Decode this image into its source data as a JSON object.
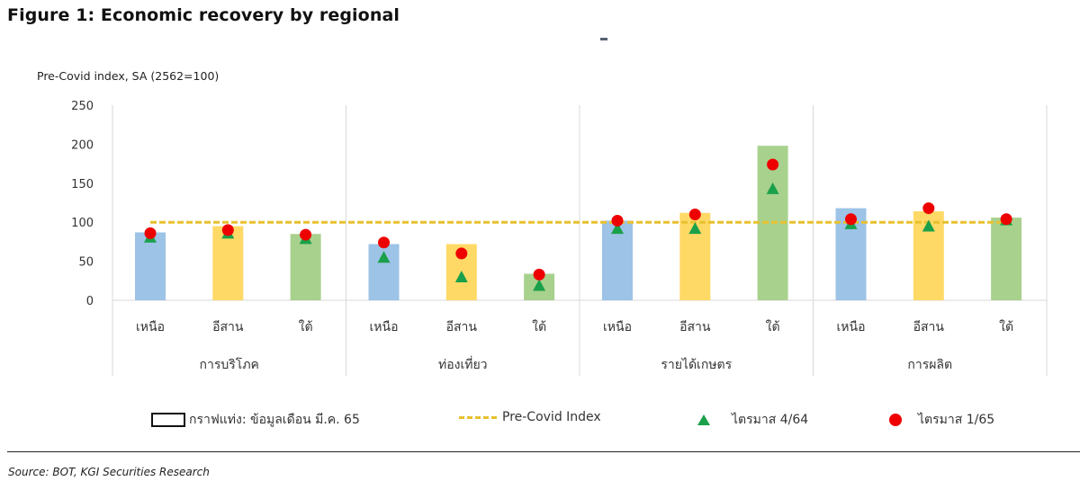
{
  "header": {
    "title": "Figure 1: Economic recovery by regional",
    "y_axis_title": "Pre-Covid index, SA  (2562=100)"
  },
  "legend": {
    "bar_label": "กราฟแท่ง: ข้อมูลเดือน มี.ค. 65",
    "line_label": "Pre-Covid Index",
    "triangle_label": "ไตรมาส 4/64",
    "dot_label": "ไตรมาส 1/65"
  },
  "footer": {
    "source": "Source: BOT, KGI Securities Research"
  },
  "colors": {
    "north": "#9dc3e6",
    "northeast": "#ffd966",
    "south": "#a9d18e",
    "precovid_line": "#e8c12e",
    "q4_64": "#1aa04a",
    "q1_65": "#ee0000"
  },
  "chart_data": {
    "type": "bar",
    "title": "Figure 1: Economic recovery by regional",
    "ylabel": "Pre-Covid index, SA  (2562=100)",
    "xlabel": "",
    "ylim": [
      0,
      250
    ],
    "yticks": [
      0,
      50,
      100,
      150,
      200,
      250
    ],
    "grid": false,
    "legend_position": "bottom",
    "groups": [
      {
        "name": "การบริโภค",
        "categories": [
          "เหนือ",
          "อีสาน",
          "ใต้"
        ]
      },
      {
        "name": "ท่องเที่ยว",
        "categories": [
          "เหนือ",
          "อีสาน",
          "ใต้"
        ]
      },
      {
        "name": "รายได้เกษตร",
        "categories": [
          "เหนือ",
          "อีสาน",
          "ใต้"
        ]
      },
      {
        "name": "การผลิต",
        "categories": [
          "เหนือ",
          "อีสาน",
          "ใต้"
        ]
      }
    ],
    "categories": [
      "เหนือ",
      "อีสาน",
      "ใต้",
      "เหนือ",
      "อีสาน",
      "ใต้",
      "เหนือ",
      "อีสาน",
      "ใต้",
      "เหนือ",
      "อีสาน",
      "ใต้"
    ],
    "series": [
      {
        "name": "กราฟแท่ง: ข้อมูลเดือน มี.ค. 65",
        "type": "bar",
        "values": [
          87,
          95,
          85,
          72,
          72,
          34,
          102,
          112,
          198,
          118,
          114,
          106
        ]
      },
      {
        "name": "Pre-Covid Index",
        "type": "line",
        "style": "dashed",
        "values": [
          100,
          100,
          100,
          100,
          100,
          100,
          100,
          100,
          100,
          100,
          100,
          100
        ]
      },
      {
        "name": "ไตรมาส 4/64",
        "type": "scatter",
        "marker": "triangle",
        "values": [
          81,
          86,
          79,
          55,
          30,
          19,
          92,
          92,
          143,
          98,
          95,
          103
        ]
      },
      {
        "name": "ไตรมาส 1/65",
        "type": "scatter",
        "marker": "circle",
        "values": [
          86,
          90,
          84,
          74,
          60,
          33,
          102,
          110,
          174,
          104,
          118,
          104
        ]
      }
    ]
  }
}
